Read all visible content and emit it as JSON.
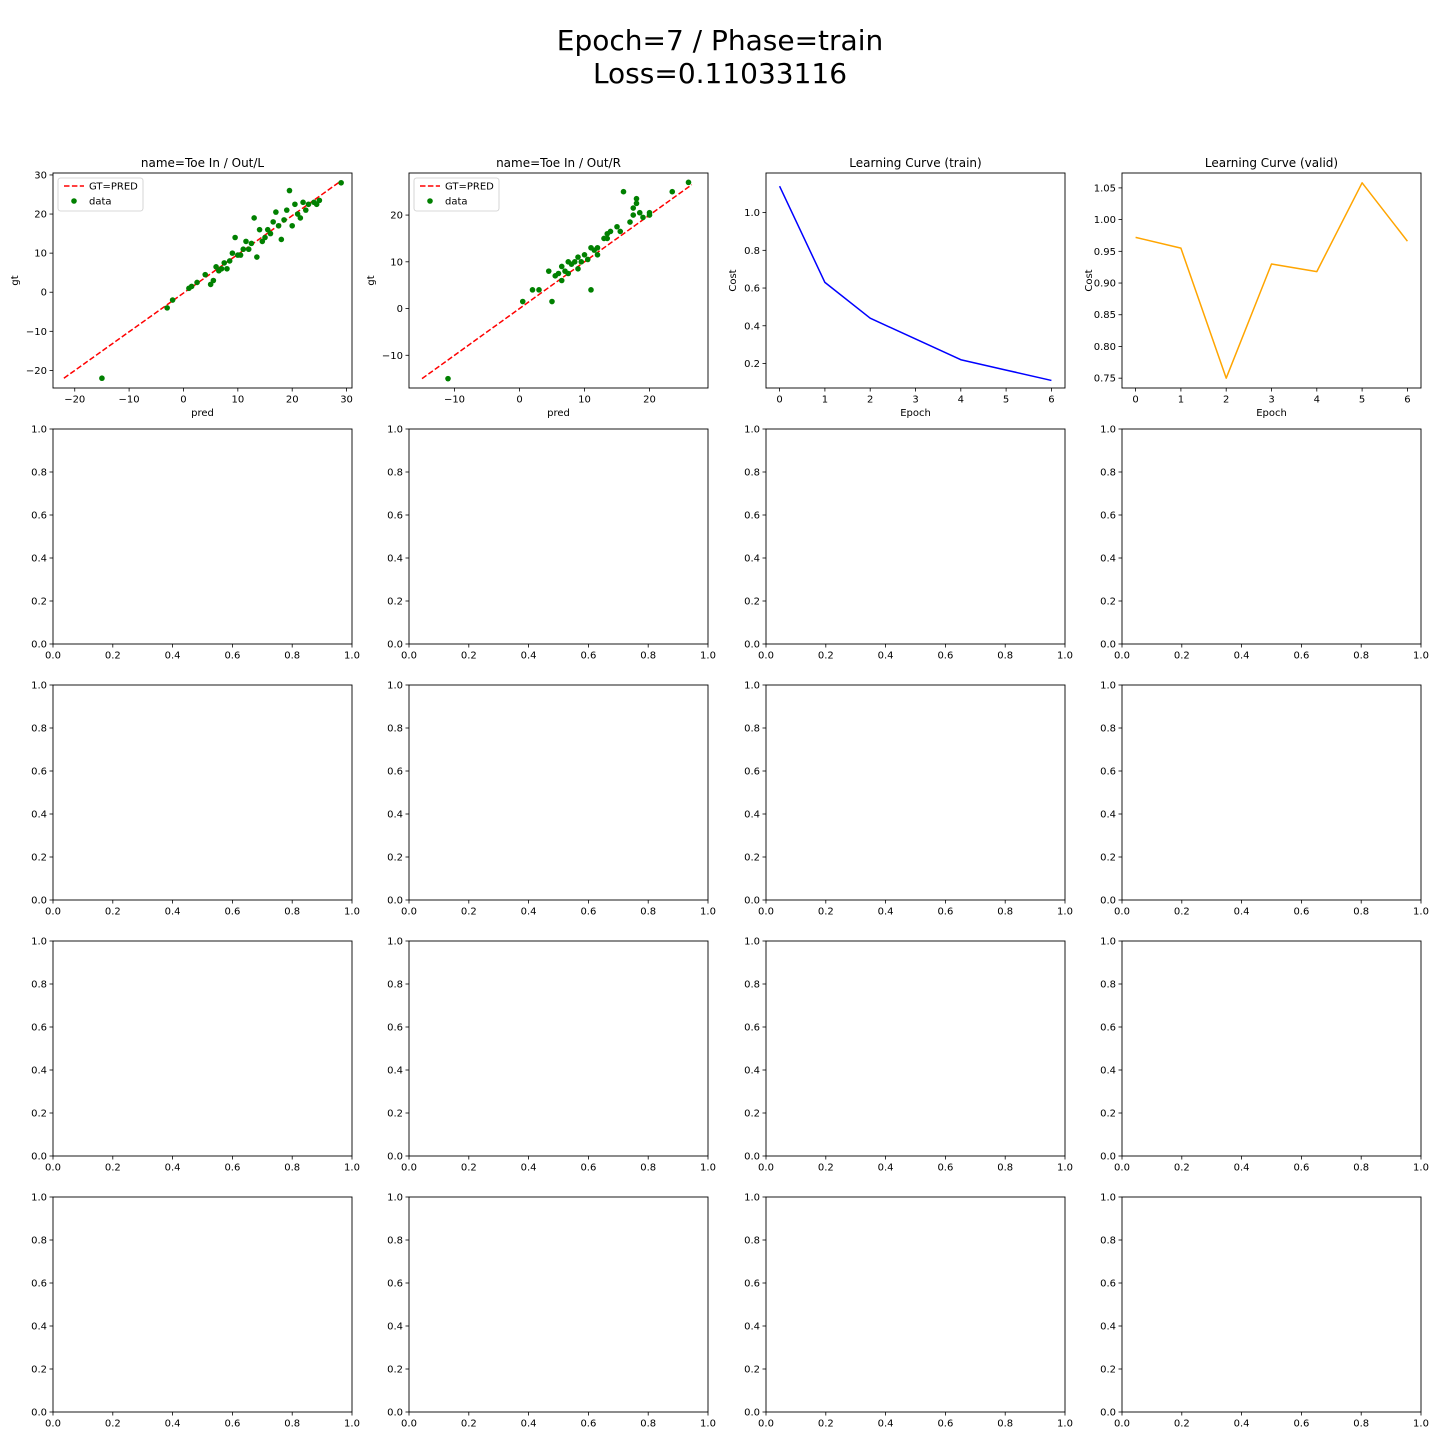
{
  "figure": {
    "suptitle_line1": "Epoch=7 / Phase=train",
    "suptitle_line2": "Loss=0.11033116"
  },
  "chart_data": [
    {
      "type": "scatter",
      "title": "name=Toe In / Out/L",
      "xlabel": "pred",
      "ylabel": "gt",
      "xlim": [
        -24,
        31
      ],
      "ylim": [
        -24.5,
        30.5
      ],
      "xticks": [
        -20,
        -10,
        0,
        10,
        20,
        30
      ],
      "yticks": [
        -20,
        -10,
        0,
        10,
        20,
        30
      ],
      "legend": {
        "placement": "upper-left",
        "entries": [
          "GT=PRED",
          "data"
        ]
      },
      "colors": {
        "reference": "#ff0000",
        "points": "#008000"
      },
      "reference_line": {
        "name": "GT=PRED",
        "x": [
          -22,
          29
        ],
        "y": [
          -22,
          28.5
        ]
      },
      "series": [
        {
          "name": "data",
          "points": [
            [
              -15,
              -22
            ],
            [
              -3,
              -4
            ],
            [
              -2,
              -2
            ],
            [
              1,
              1
            ],
            [
              1.5,
              1.5
            ],
            [
              2.5,
              2.5
            ],
            [
              4,
              4.5
            ],
            [
              5,
              2
            ],
            [
              5.5,
              3
            ],
            [
              6,
              6.5
            ],
            [
              6.5,
              5.5
            ],
            [
              7,
              6
            ],
            [
              7.5,
              7.5
            ],
            [
              8,
              6
            ],
            [
              8.5,
              8
            ],
            [
              9,
              10
            ],
            [
              9.5,
              14
            ],
            [
              10,
              9.5
            ],
            [
              10.5,
              9.5
            ],
            [
              11,
              11
            ],
            [
              11.5,
              13
            ],
            [
              12,
              11
            ],
            [
              12.5,
              12.5
            ],
            [
              13,
              19
            ],
            [
              13.5,
              9
            ],
            [
              14,
              16
            ],
            [
              14.5,
              13
            ],
            [
              15,
              14
            ],
            [
              15.5,
              16
            ],
            [
              16,
              15
            ],
            [
              16.5,
              18
            ],
            [
              17,
              20.5
            ],
            [
              17.5,
              17
            ],
            [
              18,
              13.5
            ],
            [
              18.5,
              18.5
            ],
            [
              19,
              21
            ],
            [
              19.5,
              26
            ],
            [
              20,
              17
            ],
            [
              20.5,
              22.5
            ],
            [
              21,
              20
            ],
            [
              21.5,
              19
            ],
            [
              22,
              23
            ],
            [
              22.5,
              21
            ],
            [
              23,
              22.5
            ],
            [
              24,
              23
            ],
            [
              24.5,
              22.5
            ],
            [
              25,
              23.5
            ],
            [
              29,
              28
            ]
          ]
        }
      ]
    },
    {
      "type": "scatter",
      "title": "name=Toe In / Out/R",
      "xlabel": "pred",
      "ylabel": "gt",
      "xlim": [
        -17,
        29
      ],
      "ylim": [
        -17,
        29
      ],
      "xticks": [
        -10,
        0,
        10,
        20
      ],
      "yticks": [
        -10,
        0,
        10,
        20
      ],
      "legend": {
        "placement": "upper-left",
        "entries": [
          "GT=PRED",
          "data"
        ]
      },
      "colors": {
        "reference": "#ff0000",
        "points": "#008000"
      },
      "reference_line": {
        "name": "GT=PRED",
        "x": [
          -15,
          26.5
        ],
        "y": [
          -15,
          26.5
        ]
      },
      "series": [
        {
          "name": "data",
          "points": [
            [
              -11,
              -15
            ],
            [
              0.5,
              1.5
            ],
            [
              2,
              4
            ],
            [
              3,
              4
            ],
            [
              4.5,
              8
            ],
            [
              5,
              1.5
            ],
            [
              5.5,
              7
            ],
            [
              6,
              7.5
            ],
            [
              6.5,
              9
            ],
            [
              6.5,
              6
            ],
            [
              7,
              8
            ],
            [
              7.5,
              7.5
            ],
            [
              7.5,
              10
            ],
            [
              8,
              9.5
            ],
            [
              8.5,
              10
            ],
            [
              9,
              8.5
            ],
            [
              9,
              11
            ],
            [
              9.5,
              10
            ],
            [
              10,
              11.5
            ],
            [
              10.5,
              10.5
            ],
            [
              11,
              13
            ],
            [
              11,
              4
            ],
            [
              11.5,
              12.5
            ],
            [
              12,
              11.5
            ],
            [
              12,
              13
            ],
            [
              13,
              15
            ],
            [
              13.5,
              16
            ],
            [
              13.5,
              15
            ],
            [
              14,
              16.5
            ],
            [
              15,
              17.5
            ],
            [
              15.5,
              16.5
            ],
            [
              16,
              25
            ],
            [
              17,
              18.5
            ],
            [
              17.5,
              21.5
            ],
            [
              17.5,
              20
            ],
            [
              18,
              22.5
            ],
            [
              18,
              23.5
            ],
            [
              18.5,
              20.5
            ],
            [
              19,
              19.5
            ],
            [
              20,
              20.5
            ],
            [
              20,
              20
            ],
            [
              23.5,
              25
            ],
            [
              26,
              27
            ]
          ]
        }
      ]
    },
    {
      "type": "line",
      "title": "Learning Curve (train)",
      "xlabel": "Epoch",
      "ylabel": "Cost",
      "xlim": [
        -0.3,
        6.3
      ],
      "ylim": [
        0.07,
        1.21
      ],
      "xticks": [
        0,
        1,
        2,
        3,
        4,
        5,
        6
      ],
      "yticks": [
        0.2,
        0.4,
        0.6,
        0.8,
        1.0
      ],
      "colors": {
        "line": "#0000ff"
      },
      "series": [
        {
          "x": [
            0,
            1,
            2,
            3,
            4,
            5,
            6
          ],
          "values": [
            1.14,
            0.63,
            0.44,
            0.33,
            0.22,
            0.165,
            0.11
          ]
        }
      ]
    },
    {
      "type": "line",
      "title": "Learning Curve (valid)",
      "xlabel": "Epoch",
      "ylabel": "Cost",
      "xlim": [
        -0.3,
        6.3
      ],
      "ylim": [
        0.7345,
        1.0735
      ],
      "xticks": [
        0,
        1,
        2,
        3,
        4,
        5,
        6
      ],
      "yticks": [
        0.75,
        0.8,
        0.85,
        0.9,
        0.95,
        1.0,
        1.05
      ],
      "colors": {
        "line": "#ffa500"
      },
      "series": [
        {
          "x": [
            0,
            1,
            2,
            3,
            4,
            5,
            6
          ],
          "values": [
            0.972,
            0.955,
            0.75,
            0.93,
            0.918,
            1.058,
            0.966
          ]
        }
      ]
    },
    {
      "type": "empty",
      "xlim": [
        0,
        1
      ],
      "ylim": [
        0,
        1
      ],
      "xticks": [
        0,
        0.2,
        0.4,
        0.6,
        0.8,
        1.0
      ],
      "yticks": [
        0,
        0.2,
        0.4,
        0.6,
        0.8,
        1.0
      ]
    },
    {
      "type": "empty",
      "xlim": [
        0,
        1
      ],
      "ylim": [
        0,
        1
      ],
      "xticks": [
        0,
        0.2,
        0.4,
        0.6,
        0.8,
        1.0
      ],
      "yticks": [
        0,
        0.2,
        0.4,
        0.6,
        0.8,
        1.0
      ]
    },
    {
      "type": "empty",
      "xlim": [
        0,
        1
      ],
      "ylim": [
        0,
        1
      ],
      "xticks": [
        0,
        0.2,
        0.4,
        0.6,
        0.8,
        1.0
      ],
      "yticks": [
        0,
        0.2,
        0.4,
        0.6,
        0.8,
        1.0
      ]
    },
    {
      "type": "empty",
      "xlim": [
        0,
        1
      ],
      "ylim": [
        0,
        1
      ],
      "xticks": [
        0,
        0.2,
        0.4,
        0.6,
        0.8,
        1.0
      ],
      "yticks": [
        0,
        0.2,
        0.4,
        0.6,
        0.8,
        1.0
      ]
    },
    {
      "type": "empty",
      "xlim": [
        0,
        1
      ],
      "ylim": [
        0,
        1
      ],
      "xticks": [
        0,
        0.2,
        0.4,
        0.6,
        0.8,
        1.0
      ],
      "yticks": [
        0,
        0.2,
        0.4,
        0.6,
        0.8,
        1.0
      ]
    },
    {
      "type": "empty",
      "xlim": [
        0,
        1
      ],
      "ylim": [
        0,
        1
      ],
      "xticks": [
        0,
        0.2,
        0.4,
        0.6,
        0.8,
        1.0
      ],
      "yticks": [
        0,
        0.2,
        0.4,
        0.6,
        0.8,
        1.0
      ]
    },
    {
      "type": "empty",
      "xlim": [
        0,
        1
      ],
      "ylim": [
        0,
        1
      ],
      "xticks": [
        0,
        0.2,
        0.4,
        0.6,
        0.8,
        1.0
      ],
      "yticks": [
        0,
        0.2,
        0.4,
        0.6,
        0.8,
        1.0
      ]
    },
    {
      "type": "empty",
      "xlim": [
        0,
        1
      ],
      "ylim": [
        0,
        1
      ],
      "xticks": [
        0,
        0.2,
        0.4,
        0.6,
        0.8,
        1.0
      ],
      "yticks": [
        0,
        0.2,
        0.4,
        0.6,
        0.8,
        1.0
      ]
    },
    {
      "type": "empty",
      "xlim": [
        0,
        1
      ],
      "ylim": [
        0,
        1
      ],
      "xticks": [
        0,
        0.2,
        0.4,
        0.6,
        0.8,
        1.0
      ],
      "yticks": [
        0,
        0.2,
        0.4,
        0.6,
        0.8,
        1.0
      ]
    },
    {
      "type": "empty",
      "xlim": [
        0,
        1
      ],
      "ylim": [
        0,
        1
      ],
      "xticks": [
        0,
        0.2,
        0.4,
        0.6,
        0.8,
        1.0
      ],
      "yticks": [
        0,
        0.2,
        0.4,
        0.6,
        0.8,
        1.0
      ]
    },
    {
      "type": "empty",
      "xlim": [
        0,
        1
      ],
      "ylim": [
        0,
        1
      ],
      "xticks": [
        0,
        0.2,
        0.4,
        0.6,
        0.8,
        1.0
      ],
      "yticks": [
        0,
        0.2,
        0.4,
        0.6,
        0.8,
        1.0
      ]
    },
    {
      "type": "empty",
      "xlim": [
        0,
        1
      ],
      "ylim": [
        0,
        1
      ],
      "xticks": [
        0,
        0.2,
        0.4,
        0.6,
        0.8,
        1.0
      ],
      "yticks": [
        0,
        0.2,
        0.4,
        0.6,
        0.8,
        1.0
      ]
    },
    {
      "type": "empty",
      "xlim": [
        0,
        1
      ],
      "ylim": [
        0,
        1
      ],
      "xticks": [
        0,
        0.2,
        0.4,
        0.6,
        0.8,
        1.0
      ],
      "yticks": [
        0,
        0.2,
        0.4,
        0.6,
        0.8,
        1.0
      ]
    },
    {
      "type": "empty",
      "xlim": [
        0,
        1
      ],
      "ylim": [
        0,
        1
      ],
      "xticks": [
        0,
        0.2,
        0.4,
        0.6,
        0.8,
        1.0
      ],
      "yticks": [
        0,
        0.2,
        0.4,
        0.6,
        0.8,
        1.0
      ]
    },
    {
      "type": "empty",
      "xlim": [
        0,
        1
      ],
      "ylim": [
        0,
        1
      ],
      "xticks": [
        0,
        0.2,
        0.4,
        0.6,
        0.8,
        1.0
      ],
      "yticks": [
        0,
        0.2,
        0.4,
        0.6,
        0.8,
        1.0
      ]
    },
    {
      "type": "empty",
      "xlim": [
        0,
        1
      ],
      "ylim": [
        0,
        1
      ],
      "xticks": [
        0,
        0.2,
        0.4,
        0.6,
        0.8,
        1.0
      ],
      "yticks": [
        0,
        0.2,
        0.4,
        0.6,
        0.8,
        1.0
      ]
    }
  ]
}
